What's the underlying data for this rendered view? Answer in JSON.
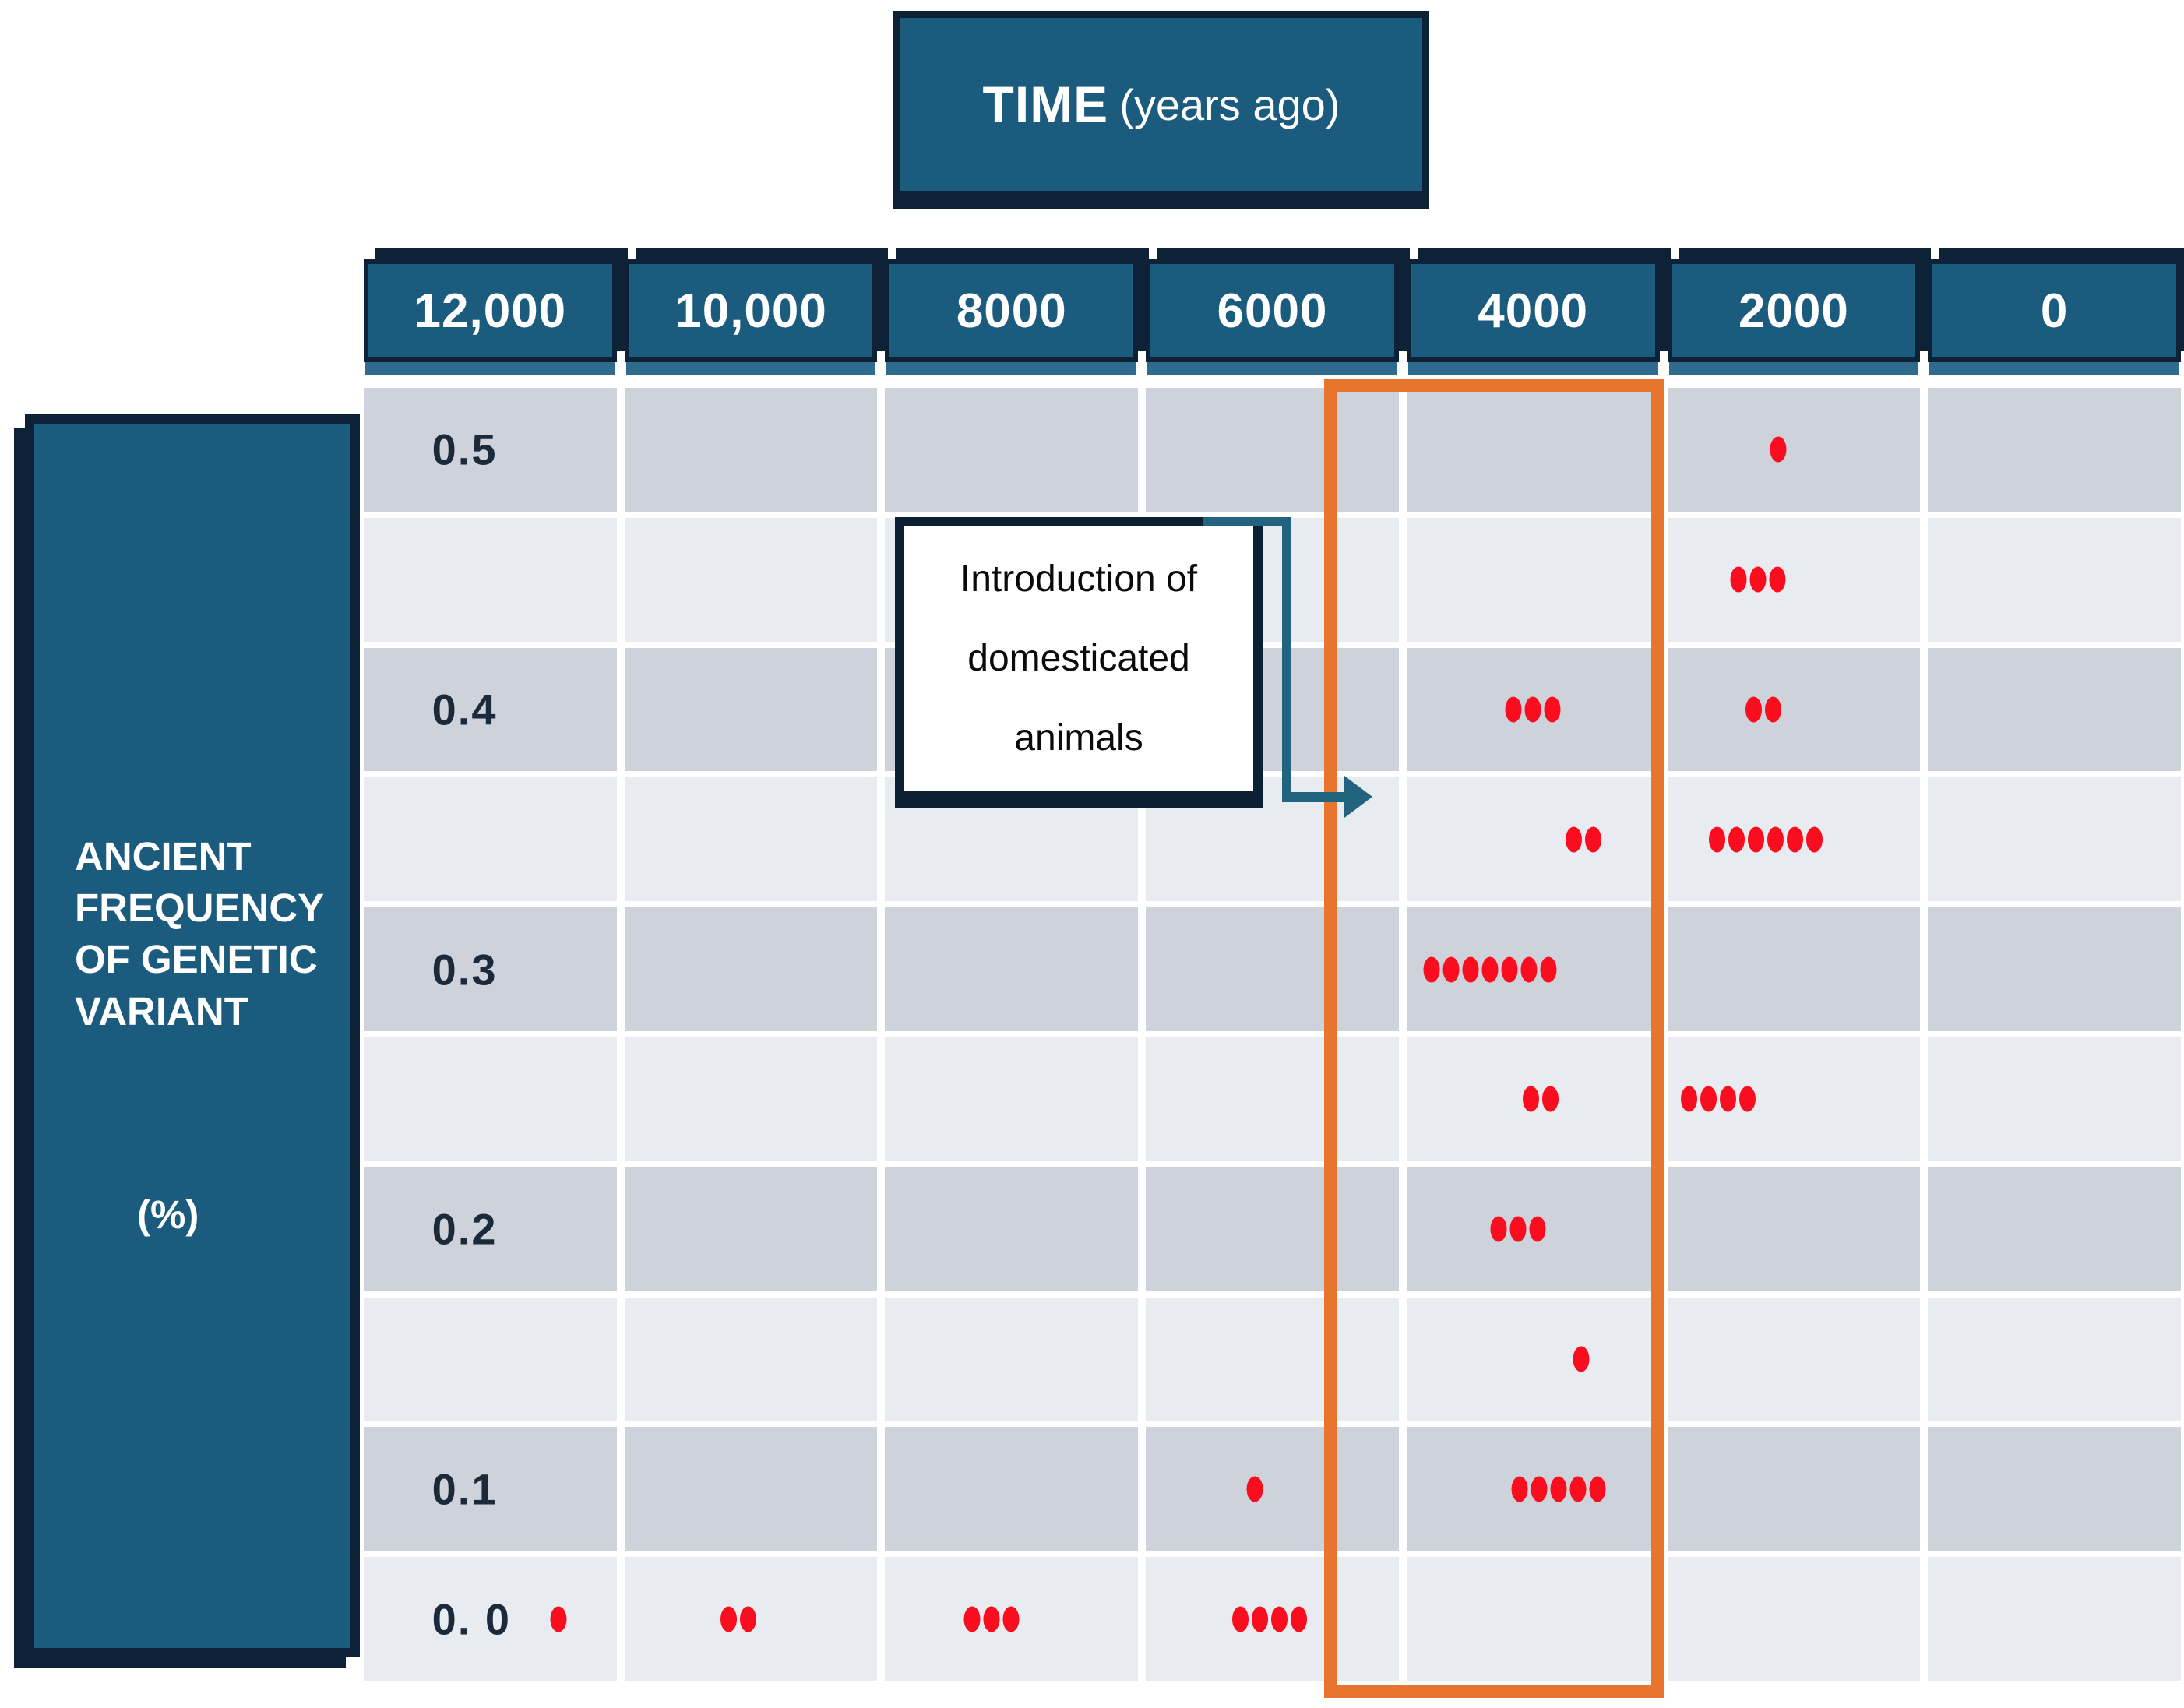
{
  "time_header": {
    "label_bold": "TIME",
    "label_rest": "(years ago)"
  },
  "y_axis": {
    "lines": [
      "ANCIENT",
      "FREQUENCY",
      "OF GENETIC",
      "VARIANT"
    ],
    "unit": "(%)"
  },
  "column_headers": [
    "12,000",
    "10,000",
    "8000",
    "6000",
    "4000",
    "2000",
    "0"
  ],
  "row_labels": [
    "0.5",
    "",
    "0.4",
    "",
    "0.3",
    "",
    "0.2",
    "",
    "0.1",
    "0. 0"
  ],
  "annotation": {
    "lines": [
      "Introduction of",
      "domesticated",
      "animals"
    ]
  },
  "colors": {
    "teal": "#1b5b7d",
    "teal_light": "#2e6b8e",
    "navy": "#0d2236",
    "orange": "#e7752d",
    "red": "#f90d1e",
    "row_dark": "#cdd2db",
    "row_light": "#e8ebef",
    "arrow": "#226380"
  },
  "chart_data": {
    "type": "scatter",
    "title": "TIME (years ago)",
    "xlabel": "TIME (years ago)",
    "ylabel": "ANCIENT FREQUENCY OF GENETIC VARIANT (%)",
    "x_categories": [
      "12,000",
      "10,000",
      "8000",
      "6000",
      "4000",
      "2000",
      "0"
    ],
    "y_axis_tick_labels": [
      "0.5",
      "0.4",
      "0.3",
      "0.2",
      "0.1",
      "0. 0"
    ],
    "y_row_values": [
      0.5,
      0.45,
      0.4,
      0.35,
      0.3,
      0.25,
      0.2,
      0.15,
      0.1,
      0.0
    ],
    "grid": {
      "rows": 10,
      "cols": 7,
      "shading": "alternating-row-gray"
    },
    "highlighted_column": "4000",
    "cells": [
      {
        "row": 0,
        "col": 5,
        "dots": 1,
        "x_pct": 44
      },
      {
        "row": 1,
        "col": 5,
        "dots": 3,
        "x_pct": 36
      },
      {
        "row": 2,
        "col": 4,
        "dots": 3,
        "x_pct": 50
      },
      {
        "row": 2,
        "col": 5,
        "dots": 2,
        "x_pct": 38
      },
      {
        "row": 3,
        "col": 4,
        "dots": 2,
        "x_pct": 70
      },
      {
        "row": 3,
        "col": 5,
        "dots": 6,
        "x_pct": 39
      },
      {
        "row": 4,
        "col": 4,
        "dots": 7,
        "x_pct": 33
      },
      {
        "row": 5,
        "col": 4,
        "dots": 2,
        "x_pct": 53
      },
      {
        "row": 5,
        "col": 5,
        "dots": 4,
        "x_pct": 20
      },
      {
        "row": 6,
        "col": 4,
        "dots": 3,
        "x_pct": 44
      },
      {
        "row": 7,
        "col": 4,
        "dots": 1,
        "x_pct": 69
      },
      {
        "row": 8,
        "col": 3,
        "dots": 1,
        "x_pct": 43
      },
      {
        "row": 8,
        "col": 4,
        "dots": 5,
        "x_pct": 60
      },
      {
        "row": 9,
        "col": 0,
        "dots": 1,
        "x_pct": 77
      },
      {
        "row": 9,
        "col": 1,
        "dots": 2,
        "x_pct": 45
      },
      {
        "row": 9,
        "col": 2,
        "dots": 3,
        "x_pct": 42
      },
      {
        "row": 9,
        "col": 3,
        "dots": 4,
        "x_pct": 49
      }
    ]
  }
}
